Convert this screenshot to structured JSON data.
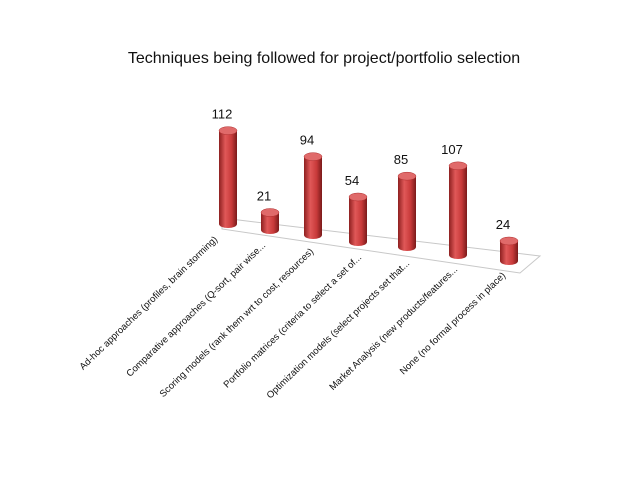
{
  "chart_data": {
    "type": "bar",
    "style": "3d-cylinder",
    "title": "Techniques being followed for project/portfolio selection",
    "categories": [
      "Ad-hoc approaches (profiles, brain storming)",
      "Comparative approaches (Q-sort, pair wise...",
      "Scoring models (rank them wrt to cost, resources)",
      "Portfolio matrices (criteria to select a set of...",
      "Optimization models (select projects set that...",
      "Market Analysis (new products/features...",
      "None (no formal process in place)"
    ],
    "values": [
      112,
      21,
      94,
      54,
      85,
      107,
      24
    ],
    "data_labels": [
      "112",
      "21",
      "94",
      "54",
      "85",
      "107",
      "24"
    ],
    "ylim": [
      0,
      120
    ],
    "grid": false,
    "legend": "none",
    "bar_color": "#c83a3a",
    "bar_top_color": "#e06a6a"
  }
}
